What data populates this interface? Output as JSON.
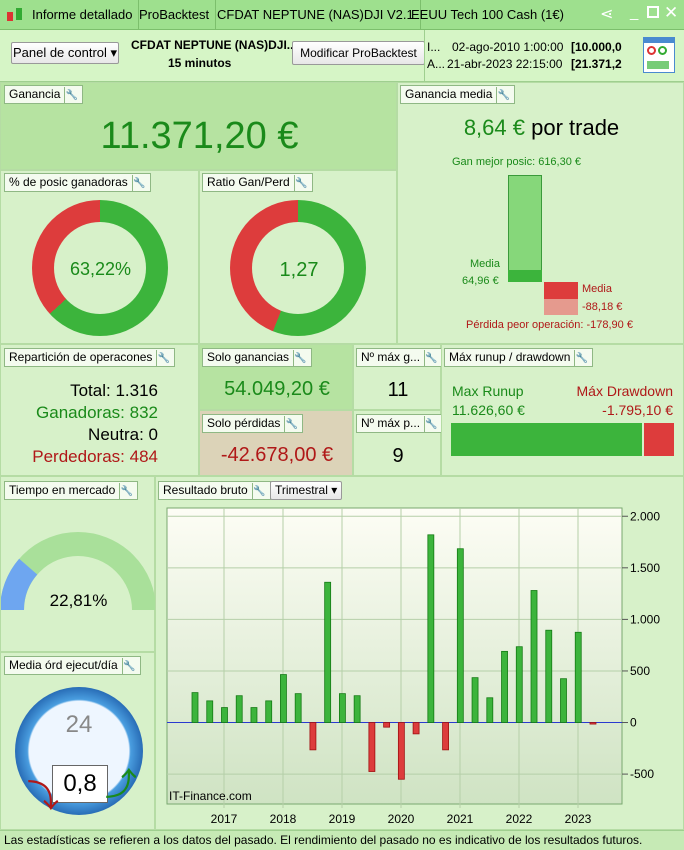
{
  "titlebar": {
    "tabs": [
      "Informe detallado",
      "ProBacktest",
      "CFDAT NEPTUNE (NAS)DJI V2.1",
      "EEUU Tech 100 Cash (1€)"
    ]
  },
  "toolbar": {
    "panel_select": "Panel de control",
    "strategy": "CFDAT NEPTUNE (NAS)DJI...",
    "timeframe": "15 minutos",
    "modify_button": "Modificar ProBacktest",
    "start_label": "I...",
    "start_date": "02-ago-2010 1:00:00",
    "start_value": "[10.000,0",
    "end_label": "A...",
    "end_date": "21-abr-2023 22:15:00",
    "end_value": "[21.371,2"
  },
  "ganancia": {
    "title": "Ganancia",
    "value": "11.371,20 €"
  },
  "ganancia_media": {
    "title": "Ganancia media",
    "value": "8,64 €",
    "suffix": "por trade",
    "best_label": "Gan mejor posic: 616,30 €",
    "media_win_label": "Media",
    "media_win_value": "64,96 €",
    "media_loss_label": "Media",
    "media_loss_value": "-88,18 €",
    "worst_label": "Pérdida peor operación: -178,90 €"
  },
  "pct_ganadoras": {
    "title": "% de posic ganadoras",
    "value": "63,22%",
    "fraction": 0.6322
  },
  "ratio": {
    "title": "Ratio Gan/Perd",
    "value": "1,27",
    "fraction": 0.56
  },
  "reparticion": {
    "title": "Repartición de operacones",
    "total_label": "Total:",
    "total": "1.316",
    "win_label": "Ganadoras:",
    "win": "832",
    "neutral_label": "Neutra:",
    "neutral": "0",
    "loss_label": "Perdedoras:",
    "loss": "484"
  },
  "solo_ganancias": {
    "title": "Solo ganancias",
    "value": "54.049,20 €"
  },
  "solo_perdidas": {
    "title": "Solo pérdidas",
    "value": "-42.678,00 €"
  },
  "max_g": {
    "title": "Nº máx g...",
    "value": "11"
  },
  "max_p": {
    "title": "Nº máx p...",
    "value": "9"
  },
  "runup": {
    "title": "Máx runup / drawdown",
    "runup_label": "Max Runup",
    "runup_value": "11.626,60 €",
    "dd_label": "Máx Drawdown",
    "dd_value": "-1.795,10 €"
  },
  "tiempo": {
    "title": "Tiempo en mercado",
    "value": "22,81%",
    "fraction": 0.2281
  },
  "media_ord": {
    "title": "Media órd ejecut/día",
    "value": "0,8",
    "clock": "24"
  },
  "resultado": {
    "title": "Resultado bruto",
    "period": "Trimestral",
    "watermark": "IT-Finance.com"
  },
  "chart_data": {
    "type": "bar",
    "title": "Resultado bruto",
    "ylim": [
      -790,
      2080
    ],
    "yticks": [
      {
        "v": 2000,
        "l": "2.000"
      },
      {
        "v": 1500,
        "l": "1.500"
      },
      {
        "v": 1000,
        "l": "1.000"
      },
      {
        "v": 500,
        "l": "500"
      },
      {
        "v": 0,
        "l": "0"
      },
      {
        "v": -500,
        "l": "-500"
      }
    ],
    "xticks": [
      "2017",
      "2018",
      "2019",
      "2020",
      "2021",
      "2022",
      "2023"
    ],
    "values": [
      290,
      210,
      145,
      260,
      145,
      210,
      465,
      280,
      -265,
      1360,
      280,
      260,
      -475,
      -45,
      -550,
      -110,
      1820,
      -265,
      1685,
      435,
      240,
      690,
      735,
      1280,
      895,
      425,
      875,
      -15
    ]
  },
  "footer": "Las estadísticas se refieren a los datos del pasado. El rendimiento del pasado no es indicativo de los resultados futuros.",
  "colors": {
    "green": "#3cb43c",
    "red": "#dd3c3c"
  }
}
